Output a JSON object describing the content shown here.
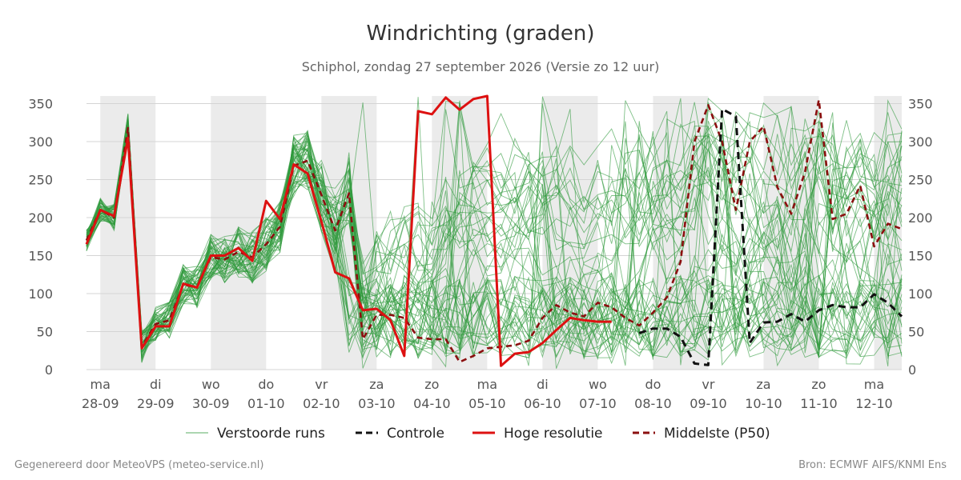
{
  "title": "Windrichting (graden)",
  "subtitle": "Schiphol, zondag 27 september 2026 (Versie zo 12 uur)",
  "footer_left": "Gegenereerd door MeteoVPS (meteo-service.nl)",
  "footer_right": "Bron: ECMWF AIFS/KNMI Ens",
  "chart_data": {
    "type": "line",
    "x_unit": "days",
    "xlim": [
      -0.25,
      14.5
    ],
    "ylim": [
      0,
      360
    ],
    "y_ticks": [
      0,
      50,
      100,
      150,
      200,
      250,
      300,
      350
    ],
    "y_axis_both_sides": true,
    "grid": "horizontal",
    "x_ticks": [
      {
        "x": 0,
        "day": "ma",
        "date": "28-09"
      },
      {
        "x": 1,
        "day": "di",
        "date": "29-09"
      },
      {
        "x": 2,
        "day": "wo",
        "date": "30-09"
      },
      {
        "x": 3,
        "day": "do",
        "date": "01-10"
      },
      {
        "x": 4,
        "day": "vr",
        "date": "02-10"
      },
      {
        "x": 5,
        "day": "za",
        "date": "03-10"
      },
      {
        "x": 6,
        "day": "zo",
        "date": "04-10"
      },
      {
        "x": 7,
        "day": "ma",
        "date": "05-10"
      },
      {
        "x": 8,
        "day": "di",
        "date": "06-10"
      },
      {
        "x": 9,
        "day": "wo",
        "date": "07-10"
      },
      {
        "x": 10,
        "day": "do",
        "date": "08-10"
      },
      {
        "x": 11,
        "day": "vr",
        "date": "09-10"
      },
      {
        "x": 12,
        "day": "za",
        "date": "10-10"
      },
      {
        "x": 13,
        "day": "zo",
        "date": "11-10"
      },
      {
        "x": 14,
        "day": "ma",
        "date": "12-10"
      }
    ],
    "shaded_bands": [
      [
        0,
        1
      ],
      [
        2,
        3
      ],
      [
        4,
        5
      ],
      [
        6,
        7
      ],
      [
        8,
        9
      ],
      [
        10,
        11
      ],
      [
        12,
        13
      ],
      [
        14,
        14.5
      ]
    ],
    "legend": {
      "placement": "bottom",
      "entries": [
        {
          "label": "Verstoorde runs",
          "color": "#2e9a3c",
          "style": "thin-solid"
        },
        {
          "label": "Controle",
          "color": "#111111",
          "style": "dashed"
        },
        {
          "label": "Hoge resolutie",
          "color": "#dd1111",
          "style": "solid"
        },
        {
          "label": "Middelste (P50)",
          "color": "#8b0f0f",
          "style": "dashed"
        }
      ]
    },
    "series": [
      {
        "name": "Hoge resolutie",
        "color": "#dd1111",
        "x": [
          -0.25,
          0,
          0.25,
          0.5,
          0.75,
          1,
          1.25,
          1.5,
          1.75,
          2,
          2.25,
          2.5,
          2.75,
          3,
          3.25,
          3.5,
          3.75,
          4,
          4.25,
          4.5,
          4.75,
          5,
          5.25,
          5.5,
          5.75,
          6,
          6.25,
          6.5,
          6.75,
          7,
          7.25,
          7.5,
          7.75,
          8,
          8.25,
          8.5,
          8.75,
          9,
          9.25
        ],
        "y": [
          165,
          210,
          202,
          305,
          28,
          57,
          57,
          113,
          108,
          150,
          150,
          160,
          143,
          222,
          198,
          270,
          258,
          195,
          128,
          120,
          78,
          80,
          65,
          18,
          340,
          336,
          358,
          342,
          356,
          360,
          5,
          21,
          23,
          35,
          52,
          68,
          65,
          63,
          63
        ]
      },
      {
        "name": "Controle",
        "color": "#111111",
        "x": [
          9.75,
          10,
          10.25,
          10.5,
          10.75,
          11,
          11.25,
          11.5,
          11.75,
          12,
          12.25,
          12.5,
          12.75,
          13,
          13.25,
          13.5,
          13.75,
          14,
          14.25,
          14.5
        ],
        "y": [
          48,
          54,
          54,
          43,
          8,
          6,
          343,
          333,
          35,
          62,
          63,
          73,
          63,
          78,
          85,
          82,
          82,
          99,
          88,
          70
        ]
      },
      {
        "name": "Middelste (P50)",
        "color": "#8b0f0f",
        "x": [
          -0.25,
          0,
          0.25,
          0.5,
          0.75,
          1,
          1.25,
          1.5,
          1.75,
          2,
          2.25,
          2.5,
          2.75,
          3,
          3.25,
          3.5,
          3.75,
          4,
          4.25,
          4.5,
          4.75,
          5,
          5.25,
          5.5,
          5.75,
          6,
          6.25,
          6.5,
          6.75,
          7,
          7.25,
          7.5,
          7.75,
          8,
          8.25,
          8.5,
          8.75,
          9,
          9.25,
          9.5,
          9.75,
          10,
          10.25,
          10.5,
          10.75,
          11,
          11.25,
          11.5,
          11.75,
          12,
          12.25,
          12.5,
          12.75,
          13,
          13.25,
          13.5,
          13.75,
          14,
          14.25,
          14.5
        ],
        "y": [
          170,
          210,
          200,
          318,
          30,
          60,
          65,
          112,
          108,
          148,
          145,
          155,
          148,
          165,
          188,
          268,
          275,
          230,
          183,
          232,
          40,
          72,
          72,
          68,
          42,
          40,
          40,
          10,
          18,
          28,
          30,
          32,
          38,
          68,
          85,
          75,
          70,
          88,
          82,
          68,
          58,
          75,
          95,
          142,
          300,
          348,
          300,
          210,
          300,
          320,
          240,
          205,
          260,
          355,
          198,
          205,
          242,
          162,
          192,
          185
        ]
      }
    ]
  }
}
